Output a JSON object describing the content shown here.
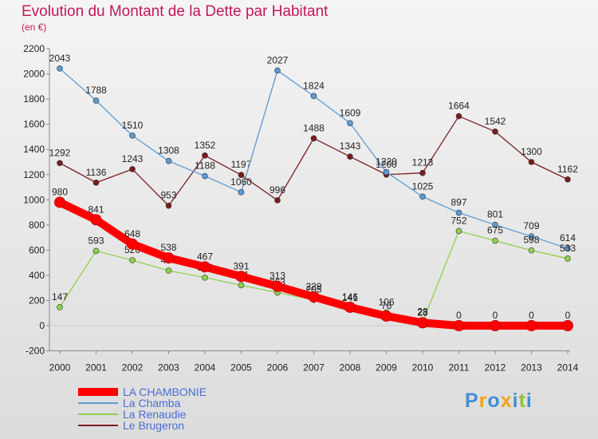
{
  "chart_data": {
    "type": "line",
    "title": "Evolution du Montant de la Dette par Habitant",
    "subtitle": "(en €)",
    "xlabel": "",
    "ylabel": "",
    "categories": [
      "2000",
      "2001",
      "2002",
      "2003",
      "2004",
      "2005",
      "2006",
      "2007",
      "2008",
      "2009",
      "2010",
      "2011",
      "2012",
      "2013",
      "2014"
    ],
    "ylim": [
      -200,
      2200
    ],
    "yticks": [
      "-200",
      "0",
      "200",
      "400",
      "600",
      "800",
      "1000",
      "1200",
      "1400",
      "1600",
      "1800",
      "2000",
      "2200"
    ],
    "grid": false,
    "legend_position": "bottom-left",
    "series": [
      {
        "name": "LA CHAMBONIE",
        "color": "#ff0000",
        "values": [
          980,
          841,
          648,
          538,
          467,
          391,
          313,
          229,
          146,
          76,
          23,
          0,
          0,
          0,
          0
        ],
        "labels": [
          "980",
          "841",
          "648",
          "538",
          "467",
          "391",
          "313",
          "229",
          "146",
          "76",
          "23",
          "0",
          "0",
          "0",
          "0"
        ]
      },
      {
        "name": "La Chamba",
        "color": "#5b9bd5",
        "values": [
          2043,
          1788,
          1510,
          1308,
          1188,
          1060,
          2027,
          1824,
          1609,
          1220,
          1025,
          897,
          801,
          709,
          614
        ],
        "labels": [
          "2043",
          "1788",
          "1510",
          "1308",
          "1188",
          "1060",
          "2027",
          "1824",
          "1609",
          "1220",
          "1025",
          "897",
          "801",
          "709",
          "614"
        ]
      },
      {
        "name": "La Renaudie",
        "color": "#8fd14f",
        "values": [
          147,
          593,
          520,
          437,
          382,
          321,
          263,
          205,
          141,
          106,
          28,
          752,
          675,
          598,
          533
        ],
        "labels": [
          "147",
          "593",
          "520",
          "437",
          "382",
          "321",
          "263",
          "205",
          "141",
          "106",
          "28",
          "752",
          "675",
          "598",
          "533"
        ]
      },
      {
        "name": "Le Brugeron",
        "color": "#7b1c1c",
        "values": [
          1292,
          1136,
          1243,
          953,
          1352,
          1197,
          996,
          1488,
          1343,
          1200,
          1213,
          1664,
          1542,
          1300,
          1162
        ],
        "labels": [
          "1292",
          "1136",
          "1243",
          "953",
          "1352",
          "1197",
          "996",
          "1488",
          "1343",
          "1200",
          "1213",
          "1664",
          "1542",
          "1300",
          "1162"
        ]
      }
    ]
  },
  "legend": {
    "items": [
      {
        "label": "LA CHAMBONIE",
        "color": "#ff0000"
      },
      {
        "label": "La Chamba",
        "color": "#5b9bd5"
      },
      {
        "label": "La Renaudie",
        "color": "#8fd14f"
      },
      {
        "label": "Le Brugeron",
        "color": "#7b1c1c"
      }
    ]
  },
  "brand": {
    "text": "Proxiti"
  }
}
